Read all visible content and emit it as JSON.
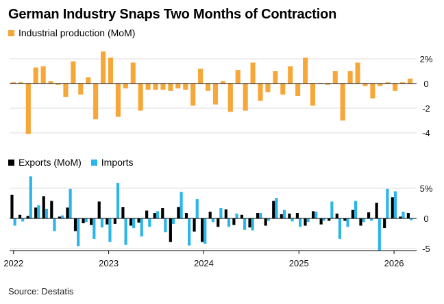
{
  "title": "German Industry Snaps Two Months of Contraction",
  "source": "Source: Destatis",
  "colors": {
    "production": "#f7a738",
    "exports": "#000000",
    "imports": "#2bb5ea",
    "grid": "#dcdcdc",
    "axis": "#000000"
  },
  "chart_data": [
    {
      "type": "bar",
      "id": "production",
      "series": [
        {
          "name": "Industrial production (MoM)",
          "values": [
            0.1,
            0.1,
            -4.1,
            1.3,
            1.4,
            0.2,
            -0.1,
            -1.1,
            1.8,
            -0.9,
            0.5,
            -2.9,
            2.6,
            2.1,
            -2.7,
            -0.4,
            1.7,
            -2.2,
            -0.5,
            -0.5,
            -0.5,
            -0.6,
            -0.4,
            -0.5,
            -1.8,
            1.2,
            -0.6,
            -1.7,
            0.2,
            -2.3,
            1.1,
            -2.2,
            1.7,
            -1.4,
            -0.7,
            1.0,
            -0.9,
            1.4,
            -1.0,
            2.1,
            -1.8,
            0.0,
            -0.1,
            1.0,
            -3.0,
            1.0,
            1.7,
            -0.2,
            -1.2,
            -0.2,
            0.1,
            -0.6,
            0.1,
            0.4
          ]
        }
      ],
      "yticks": [
        2,
        0,
        -2,
        -4
      ],
      "ytick_labels": [
        "2%",
        "0",
        "-2",
        "-4"
      ],
      "ylim": [
        -4.4,
        2.8
      ]
    },
    {
      "type": "bar",
      "id": "trade",
      "series": [
        {
          "name": "Exports (MoM)",
          "values": [
            3.9,
            0.6,
            0.4,
            1.8,
            3.7,
            2.9,
            0.3,
            1.8,
            -2.1,
            -0.8,
            -1.1,
            2.8,
            -1.0,
            -0.9,
            1.9,
            -1.2,
            -0.7,
            1.3,
            0.9,
            1.7,
            -3.9,
            1.9,
            0.9,
            -2.2,
            -3.9,
            1.1,
            -1.4,
            1.5,
            -1.1,
            0.6,
            -1.5,
            0.9,
            -1.2,
            2.9,
            0.7,
            0.8,
            0.9,
            -1.2,
            1.2,
            -1.0,
            -0.4,
            0.8,
            -0.4,
            1.4,
            -1.2,
            1.0,
            2.6,
            -1.6,
            3.5,
            0.3,
            0.9
          ]
        },
        {
          "name": "Imports",
          "values": [
            -1.2,
            -0.5,
            7.0,
            2.2,
            1.6,
            -2.1,
            0.5,
            4.9,
            -4.6,
            -0.6,
            -3.4,
            -1.5,
            -3.9,
            5.9,
            -4.4,
            -1.6,
            -3.0,
            -1.4,
            1.2,
            -2.3,
            -0.9,
            4.4,
            -4.5,
            3.2,
            -4.2,
            -0.6,
            1.7,
            -1.4,
            0.8,
            -1.9,
            -2.0,
            0.9,
            -0.4,
            3.4,
            1.4,
            -0.5,
            -1.4,
            -0.6,
            1.1,
            -0.4,
            2.8,
            -3.4,
            -1.4,
            2.9,
            -0.6,
            -0.4,
            -5.3,
            4.9,
            4.5,
            1.1,
            -0.3
          ]
        }
      ],
      "yticks": [
        5,
        0,
        -5
      ],
      "ytick_labels": [
        "5%",
        "0",
        "-5"
      ],
      "ylim": [
        -5.6,
        7.4
      ],
      "xtick_labels": [
        "2022",
        "2023",
        "2024",
        "2025",
        "2026"
      ],
      "xtick_index": [
        0,
        12,
        24,
        36,
        48
      ]
    }
  ]
}
